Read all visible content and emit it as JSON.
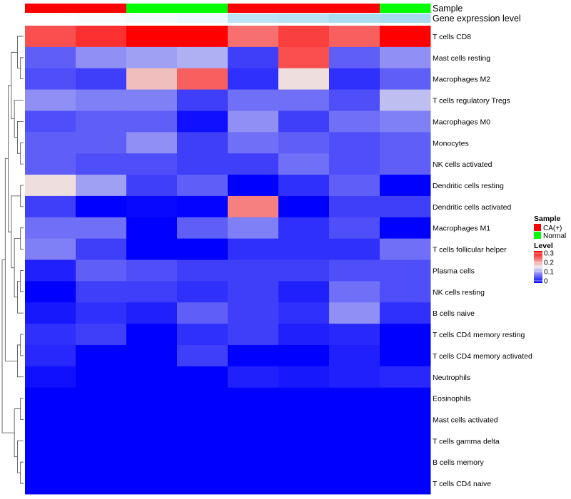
{
  "chart_data": {
    "type": "heatmap",
    "title": "",
    "annotation_tracks": [
      {
        "name": "Sample"
      },
      {
        "name": "Gene expression level"
      }
    ],
    "rows": [
      "T cells CD8",
      "Mast cells resting",
      "Macrophages M2",
      "T cells regulatory  Tregs",
      "Macrophages M0",
      "Monocytes",
      "NK cells activated",
      "Dendritic cells resting",
      "Dendritic cells activated",
      "Macrophages M1",
      "T cells follicular helper",
      "Plasma cells",
      "NK cells resting",
      "B cells naive",
      "T cells CD4 memory resting",
      "T cells CD4 memory activated",
      "Neutrophils",
      "Eosinophils",
      "Mast cells activated",
      "T cells gamma delta",
      "B cells memory",
      "T cells CD4 naive"
    ],
    "columns": [
      {
        "sample": "CA(+)",
        "gene_expression_level": 0.0
      },
      {
        "sample": "CA(+)",
        "gene_expression_level": 0.05
      },
      {
        "sample": "Normal",
        "gene_expression_level": 0.1
      },
      {
        "sample": "Normal",
        "gene_expression_level": 0.15
      },
      {
        "sample": "CA(+)",
        "gene_expression_level": 0.55
      },
      {
        "sample": "CA(+)",
        "gene_expression_level": 0.6
      },
      {
        "sample": "CA(+)",
        "gene_expression_level": 0.7
      },
      {
        "sample": "Normal",
        "gene_expression_level": 0.75
      }
    ],
    "values": [
      [
        0.25,
        0.27,
        0.3,
        0.3,
        0.23,
        0.26,
        0.24,
        0.3
      ],
      [
        0.06,
        0.09,
        0.1,
        0.11,
        0.04,
        0.25,
        0.06,
        0.09
      ],
      [
        0.05,
        0.04,
        0.18,
        0.24,
        0.03,
        0.16,
        0.03,
        0.06
      ],
      [
        0.09,
        0.08,
        0.08,
        0.04,
        0.07,
        0.07,
        0.05,
        0.12
      ],
      [
        0.05,
        0.06,
        0.06,
        0.01,
        0.09,
        0.04,
        0.07,
        0.08
      ],
      [
        0.06,
        0.06,
        0.09,
        0.04,
        0.07,
        0.06,
        0.05,
        0.06
      ],
      [
        0.06,
        0.05,
        0.05,
        0.04,
        0.04,
        0.07,
        0.05,
        0.06
      ],
      [
        0.16,
        0.1,
        0.04,
        0.06,
        0.0,
        0.03,
        0.06,
        0.0
      ],
      [
        0.04,
        0.0,
        0.005,
        0.002,
        0.22,
        0.0,
        0.04,
        0.04
      ],
      [
        0.07,
        0.07,
        0.0,
        0.06,
        0.08,
        0.03,
        0.05,
        0.0
      ],
      [
        0.08,
        0.04,
        0.0,
        0.0,
        0.03,
        0.03,
        0.03,
        0.07
      ],
      [
        0.02,
        0.06,
        0.05,
        0.04,
        0.04,
        0.04,
        0.05,
        0.05
      ],
      [
        0.0,
        0.04,
        0.04,
        0.03,
        0.04,
        0.02,
        0.07,
        0.05
      ],
      [
        0.015,
        0.03,
        0.02,
        0.06,
        0.04,
        0.03,
        0.09,
        0.03
      ],
      [
        0.03,
        0.04,
        0.0,
        0.03,
        0.04,
        0.02,
        0.025,
        0.0
      ],
      [
        0.025,
        0.0,
        0.0,
        0.04,
        0.0,
        0.0,
        0.02,
        0.0
      ],
      [
        0.01,
        0.0,
        0.0,
        0.0,
        0.02,
        0.015,
        0.02,
        0.025
      ],
      [
        0.0,
        0.0,
        0.0,
        0.0,
        0.0,
        0.0,
        0.0,
        0.0
      ],
      [
        0.0,
        0.0,
        0.0,
        0.0,
        0.0,
        0.0,
        0.0,
        0.0
      ],
      [
        0.0,
        0.0,
        0.0,
        0.0,
        0.0,
        0.0,
        0.0,
        0.0
      ],
      [
        0.0,
        0.0,
        0.0,
        0.0,
        0.0,
        0.0,
        0.0,
        0.0
      ],
      [
        0.0,
        0.0,
        0.0,
        0.0,
        0.0,
        0.0,
        0.0,
        0.0
      ]
    ],
    "color_scale": {
      "min": 0,
      "mid": 0.15,
      "max": 0.3,
      "low_color": "#0000FF",
      "mid_color": "#EEEEEE",
      "high_color": "#FF0000"
    },
    "sample_colors": {
      "CA(+)": "#FF0000",
      "Normal": "#00FF00"
    },
    "expression_track_colors": {
      "low": "#FFFFFF",
      "high": "#87CEEB"
    },
    "legend": {
      "placement": "right",
      "sample_title": "Sample",
      "sample_entries": [
        "CA(+)",
        "Normal"
      ],
      "level_title": "Level",
      "level_ticks": [
        "0.3",
        "0.2",
        "0.1",
        "0"
      ]
    },
    "row_dendrogram": {
      "side": "left",
      "tree": [
        [
          [
            [
              [
                0,
                [
                  1,
                  2
                ]
              ],
              [
                3,
                [
                  4,
                  [
                    5,
                    6
                  ]
                ]
              ]
            ],
            [
              [
                7,
                8
              ],
              [
                [
                  9,
                  10
                ],
                [
                  [
                    11,
                    12
                  ],
                  13
                ]
              ]
            ]
          ],
          [
            [
              14,
              15
            ],
            16
          ]
        ],
        [
          [
            17,
            18
          ],
          [
            19,
            [
              20,
              21
            ]
          ]
        ]
      ]
    }
  }
}
